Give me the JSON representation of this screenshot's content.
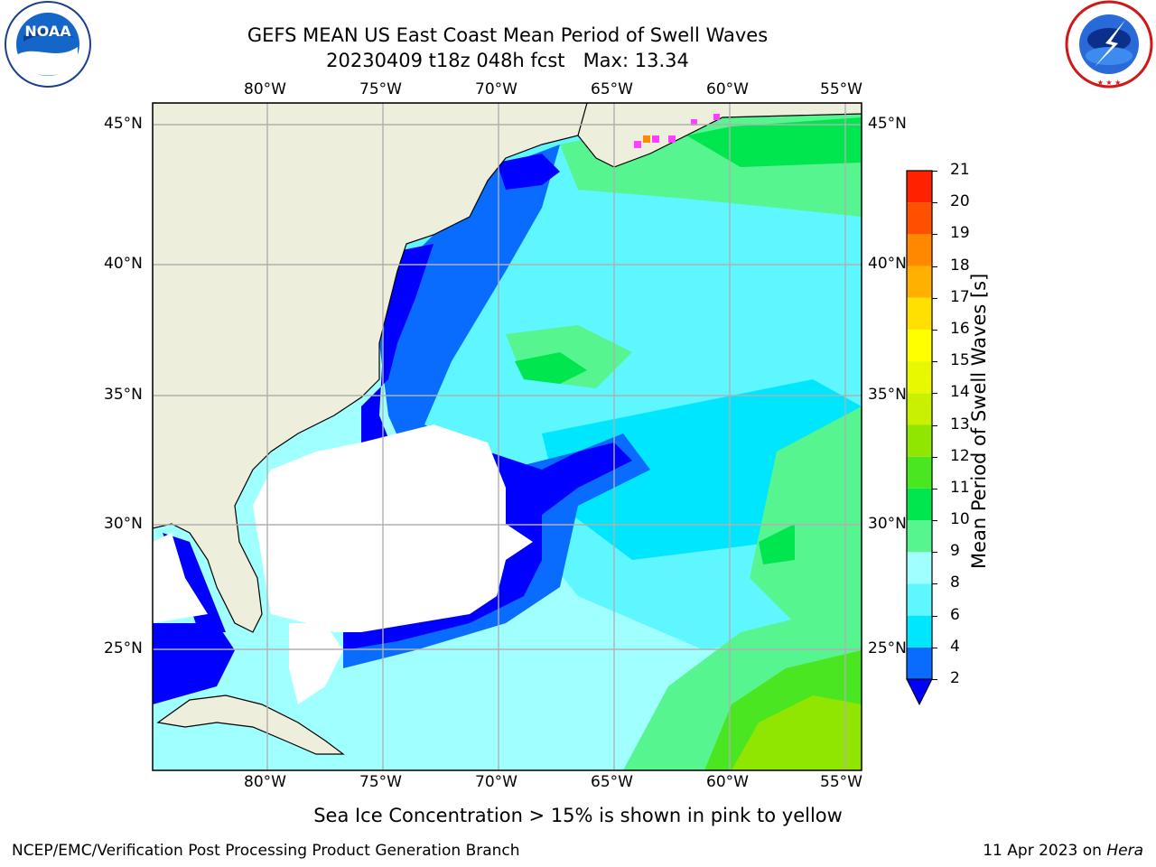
{
  "title": {
    "line1": "GEFS MEAN US East Coast Mean Period of Swell Waves",
    "line2": "20230409 t18z 048h fcst",
    "max_label": "Max: 13.34"
  },
  "logos": {
    "noaa_text": "NOAA",
    "noaa_ring": "NATIONAL OCEANIC AND ATMOSPHERIC ADMINISTRATION · U.S. DEPARTMENT OF COMMERCE",
    "nws_ring": "NATIONAL WEATHER SERVICE"
  },
  "map": {
    "lon_labels": [
      "80°W",
      "75°W",
      "70°W",
      "65°W",
      "60°W",
      "55°W"
    ],
    "lat_labels": [
      "45°N",
      "40°N",
      "35°N",
      "30°N",
      "25°N"
    ],
    "colors": {
      "land": "#eeeedd",
      "no_swell": "#ffffff",
      "grid": "#b0b0b0"
    }
  },
  "colorbar": {
    "label": "Mean Period of Swell Waves [s]",
    "ticks": [
      "2",
      "4",
      "6",
      "8",
      "9",
      "10",
      "11",
      "12",
      "13",
      "14",
      "15",
      "16",
      "17",
      "18",
      "19",
      "20",
      "21"
    ],
    "colors": [
      "#0a6cff",
      "#00e6ff",
      "#5ef6ff",
      "#a0ffff",
      "#57f58f",
      "#00e64e",
      "#4ae622",
      "#90e600",
      "#c8f000",
      "#e8f800",
      "#ffff00",
      "#ffe000",
      "#ffb000",
      "#ff8800",
      "#ff5000",
      "#ff2200"
    ],
    "under_color": "#0000ff"
  },
  "caption": "Sea Ice Concentration > 15% is shown in pink to yellow",
  "footer": {
    "left": "NCEP/EMC/Verification Post Processing Product Generation Branch",
    "date": "11 Apr 2023 on",
    "machine": "Hera"
  }
}
